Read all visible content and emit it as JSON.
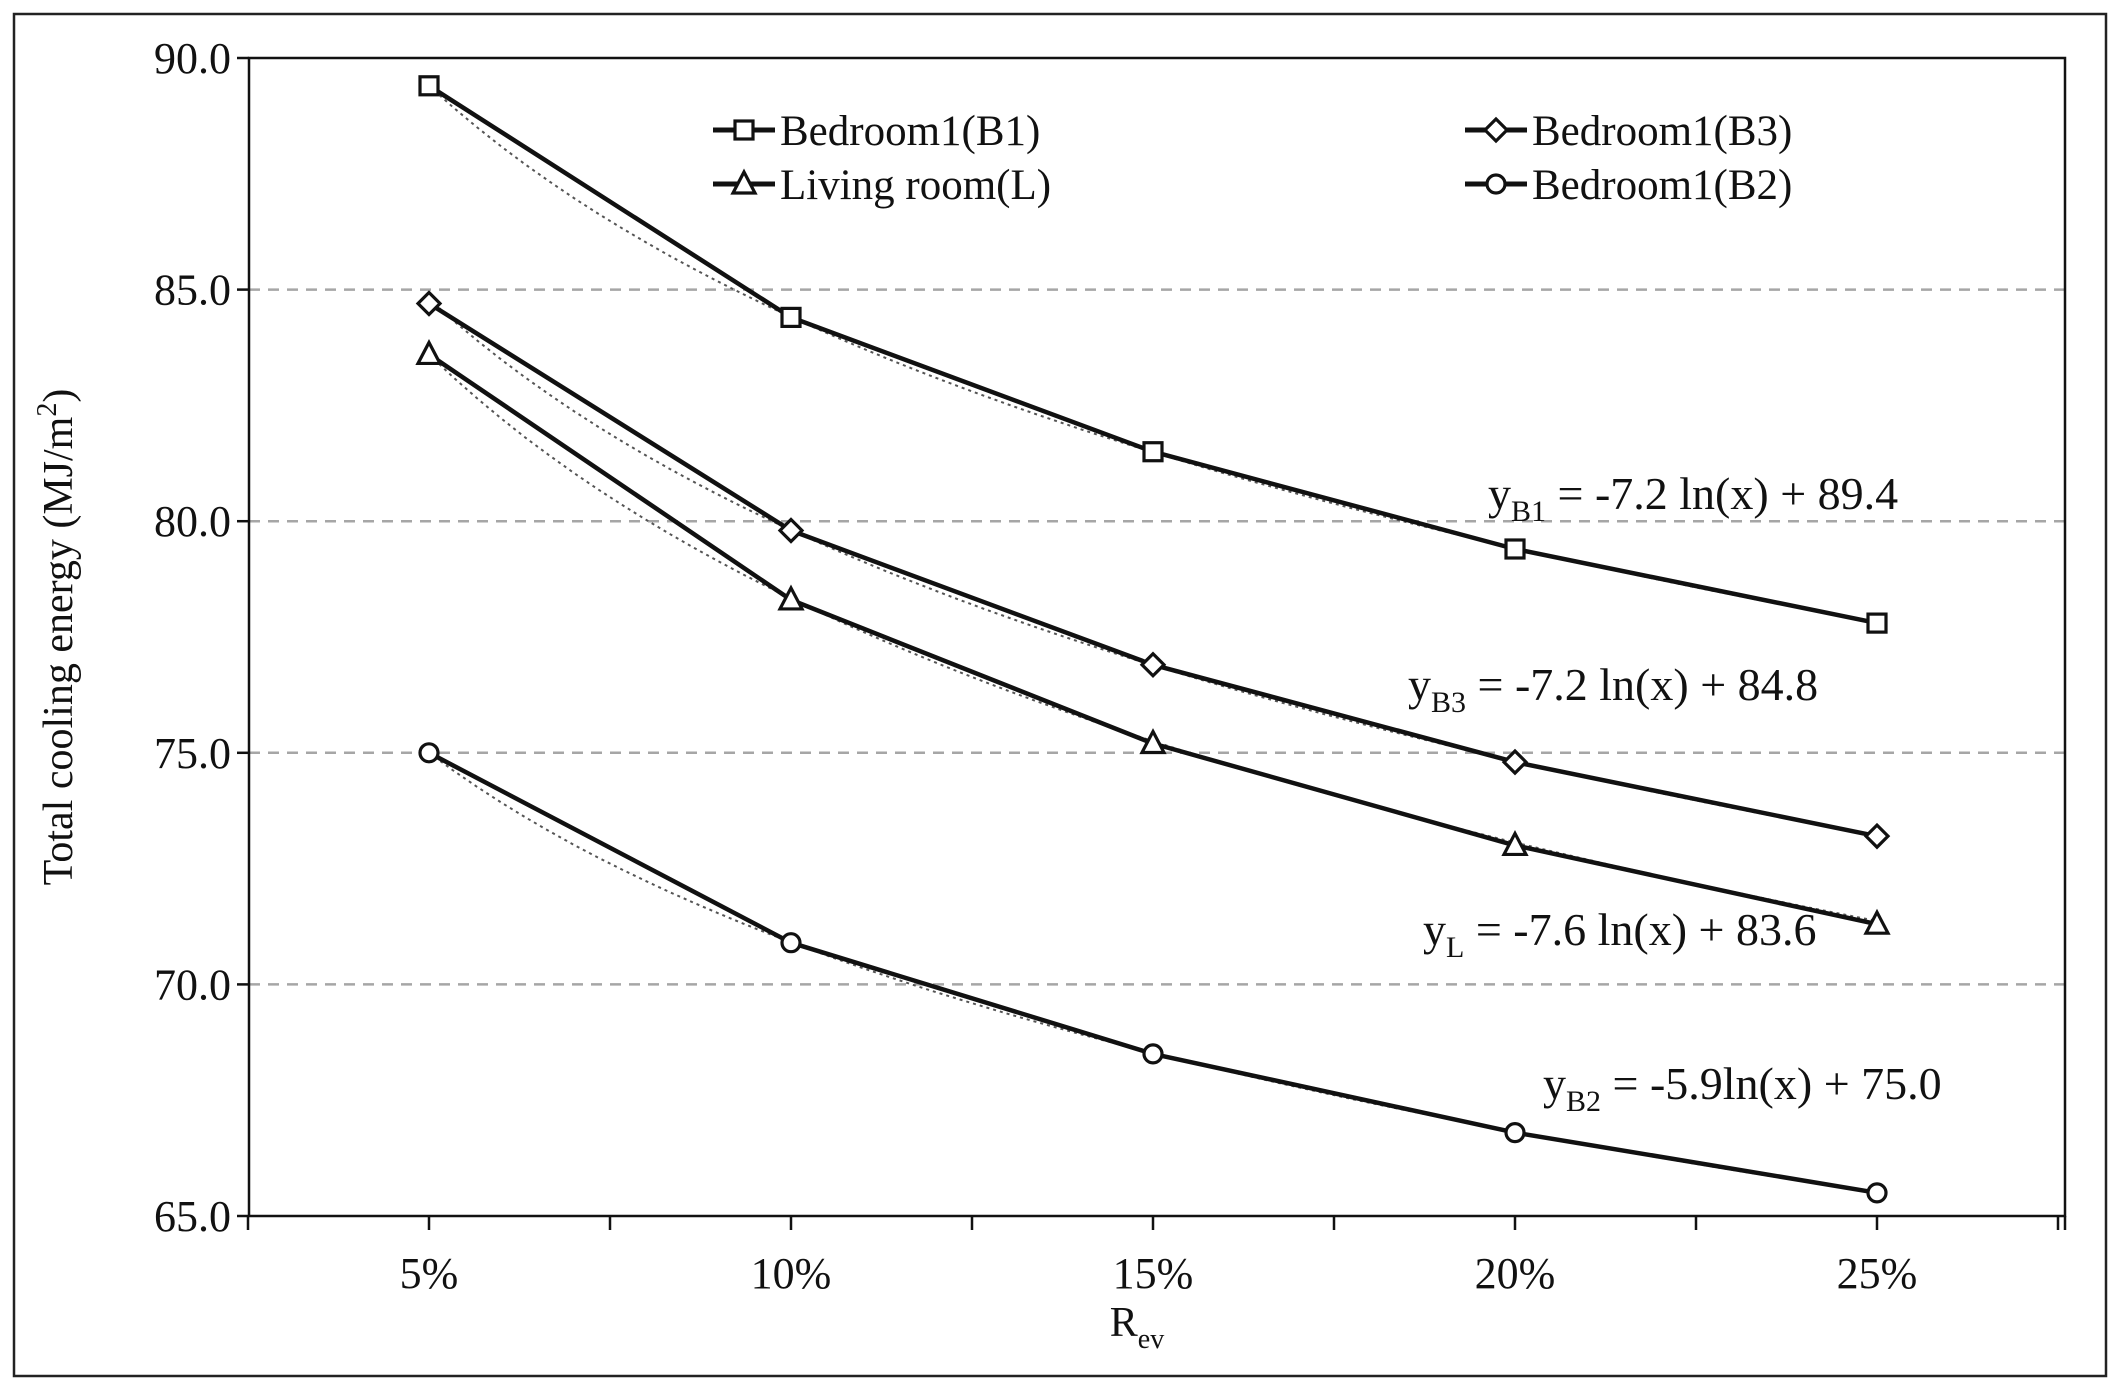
{
  "chart_data": {
    "type": "line",
    "categories": [
      "5%",
      "10%",
      "15%",
      "20%",
      "25%"
    ],
    "ylabel": "Total cooling energy (MJ/m",
    "ylabel_sup": "2",
    "ylabel_tail": ")",
    "xlabel": "R",
    "xlabel_sub": "ev",
    "ylim": [
      65.0,
      90.0
    ],
    "yticks": [
      65.0,
      70.0,
      75.0,
      80.0,
      85.0,
      90.0
    ],
    "ytick_labels": [
      "65.0",
      "70.0",
      "75.0",
      "80.0",
      "85.0",
      "90.0"
    ],
    "grid": "horizontal dashed",
    "series": [
      {
        "name": "Bedroom1(B1)",
        "marker": "square",
        "values": [
          89.4,
          84.4,
          81.5,
          79.4,
          77.8
        ],
        "fit": {
          "a": -7.2,
          "b": 89.4,
          "label_pre": "y",
          "label_sub": "B1",
          "label_post": " = -7.2 ln(x) + 89.4"
        }
      },
      {
        "name": "Bedroom1(B3)",
        "marker": "diamond",
        "values": [
          84.7,
          79.8,
          76.9,
          74.8,
          73.2
        ],
        "fit": {
          "a": -7.2,
          "b": 84.8,
          "label_pre": "y",
          "label_sub": "B3",
          "label_post": " = -7.2 ln(x) + 84.8"
        }
      },
      {
        "name": "Living room(L)",
        "marker": "triangle",
        "values": [
          83.6,
          78.3,
          75.2,
          73.0,
          71.3
        ],
        "fit": {
          "a": -7.6,
          "b": 83.6,
          "label_pre": "y",
          "label_sub": "L",
          "label_post": " = -7.6 ln(x) + 83.6"
        }
      },
      {
        "name": "Bedroom1(B2)",
        "marker": "circle",
        "values": [
          75.0,
          70.9,
          68.5,
          66.8,
          65.5
        ],
        "fit": {
          "a": -5.9,
          "b": 75.0,
          "label_pre": "y",
          "label_sub": "B2",
          "label_post": " = -5.9ln(x) + 75.0"
        }
      }
    ],
    "legend": "top, two columns"
  },
  "colors": {
    "line": "#111111",
    "grid": "#a6a6a6",
    "frame": "#222222",
    "fit": "#555555"
  }
}
